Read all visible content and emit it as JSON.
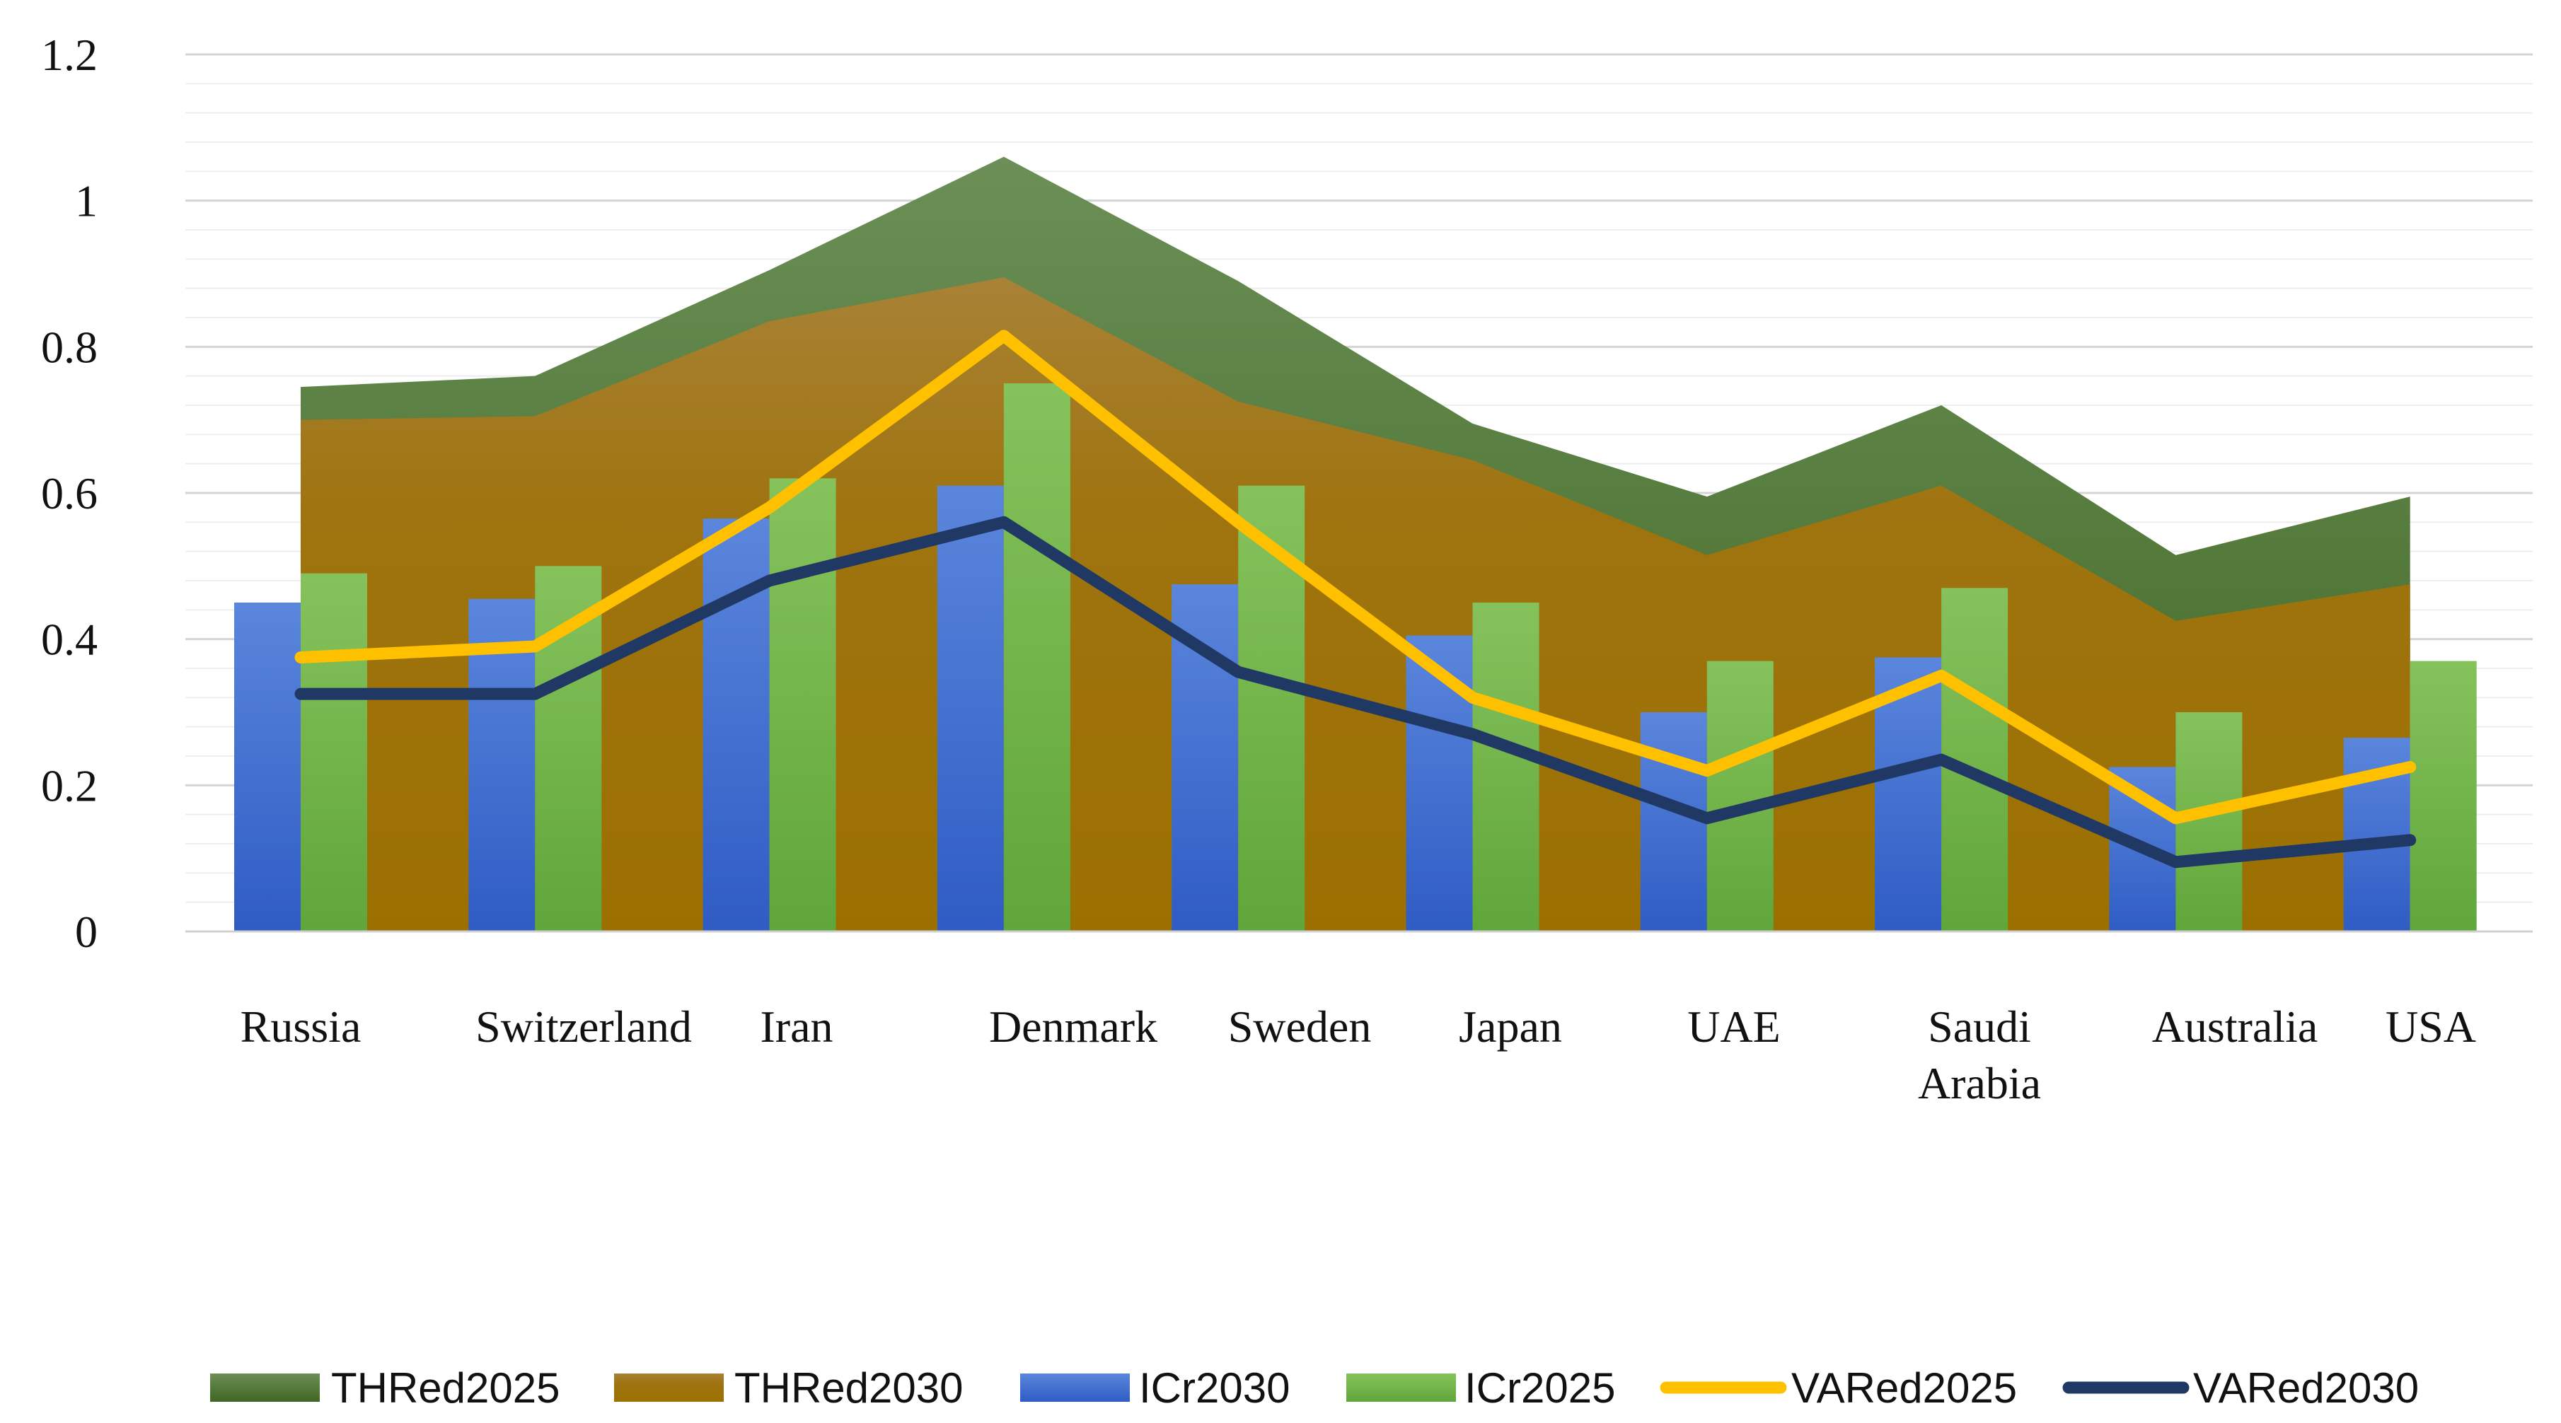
{
  "chart_data": {
    "type": "bar",
    "title": "",
    "xlabel": "",
    "ylabel": "",
    "ylim": [
      0,
      1.2
    ],
    "yticks": [
      "0",
      "0.2",
      "0.4",
      "0.6",
      "0.8",
      "1",
      "1.2"
    ],
    "grid": true,
    "legend_position": "bottom",
    "categories": [
      [
        "Russia"
      ],
      [
        "Switzerland"
      ],
      [
        "Iran"
      ],
      [
        "Denmark"
      ],
      [
        "Sweden"
      ],
      [
        "Japan"
      ],
      [
        "UAE"
      ],
      [
        "Saudi",
        "Arabia"
      ],
      [
        "Australia"
      ],
      [
        "USA"
      ]
    ],
    "series": [
      {
        "name": "THRed2025",
        "kind": "area",
        "color": "#4e7431",
        "values": [
          0.745,
          0.76,
          0.905,
          1.06,
          0.89,
          0.695,
          0.595,
          0.72,
          0.515,
          0.595
        ]
      },
      {
        "name": "THRed2030",
        "kind": "area",
        "color": "#a0740a",
        "values": [
          0.7,
          0.705,
          0.835,
          0.895,
          0.725,
          0.645,
          0.515,
          0.61,
          0.425,
          0.475
        ]
      },
      {
        "name": "ICr2030",
        "kind": "bar",
        "color": "#4a73d2",
        "values": [
          0.45,
          0.455,
          0.565,
          0.61,
          0.475,
          0.405,
          0.3,
          0.375,
          0.225,
          0.265
        ]
      },
      {
        "name": "ICr2025",
        "kind": "bar",
        "color": "#72b34a",
        "values": [
          0.49,
          0.5,
          0.62,
          0.75,
          0.61,
          0.45,
          0.37,
          0.47,
          0.3,
          0.37
        ]
      },
      {
        "name": "VARed2025",
        "kind": "line",
        "color": "#ffc000",
        "values": [
          0.375,
          0.39,
          0.58,
          0.815,
          0.56,
          0.32,
          0.22,
          0.35,
          0.155,
          0.225
        ]
      },
      {
        "name": "VARed2030",
        "kind": "line",
        "color": "#203864",
        "values": [
          0.325,
          0.325,
          0.48,
          0.56,
          0.355,
          0.27,
          0.155,
          0.235,
          0.095,
          0.125
        ]
      }
    ]
  }
}
